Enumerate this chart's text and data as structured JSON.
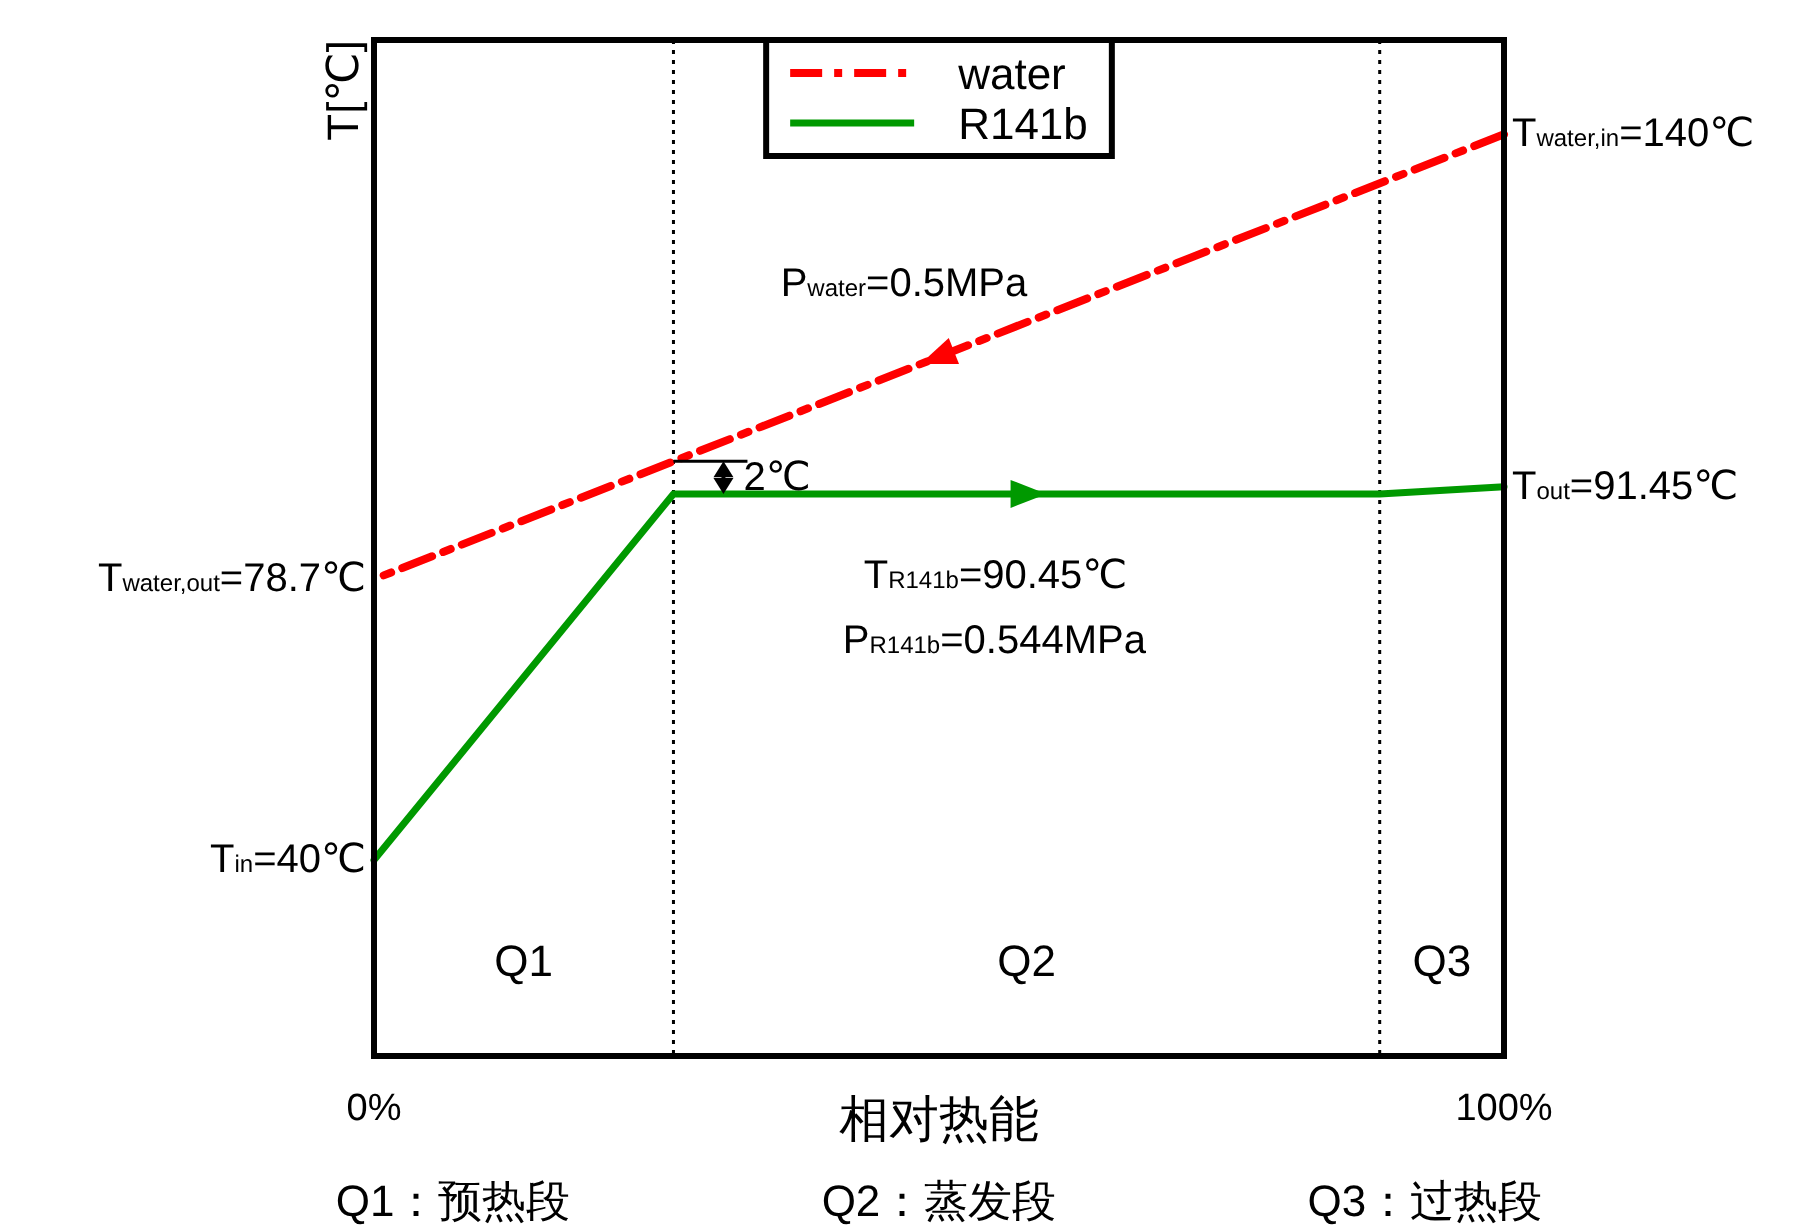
{
  "chart_data": {
    "type": "line",
    "xlabel": "相对热能",
    "ylabel": "T[℃]",
    "xlim": [
      0,
      100
    ],
    "xticks": [
      {
        "value": 0,
        "label": "0%"
      },
      {
        "value": 100,
        "label": "100%"
      }
    ],
    "tick_labels": "x",
    "legend": "top",
    "series": [
      {
        "name": "water",
        "color": "#ff0000",
        "line_style": "dashdot",
        "x": [
          100,
          0
        ],
        "values": [
          140,
          78.7
        ],
        "value_labels": [
          "T$_{water,in}$=140℃",
          "T$_{water,out}$=78.7℃"
        ]
      },
      {
        "name": "R141b",
        "color": "#009900",
        "line_style": "solid",
        "x": [
          0,
          26.5,
          89,
          100
        ],
        "values": [
          40,
          90.45,
          90.45,
          91.45
        ],
        "value_labels": [
          "T$_{in}$=40℃",
          null,
          null,
          "T$_{out}$=91.45℃"
        ]
      }
    ],
    "ref_lines": [
      {
        "axis": "x",
        "value": 26.5,
        "color": "#000000",
        "line_style": "dotted"
      },
      {
        "axis": "x",
        "value": 89,
        "color": "#000000",
        "line_style": "dotted"
      }
    ],
    "annotations": [
      "P$_{water}$=0.5MPa",
      "2℃",
      "P$_{R141b}$=0.544MPa",
      "Q1",
      "Q2",
      "Q3",
      "Q1：预热段",
      "Q2：蒸发段",
      "Q3：过热段",
      {
        "text": "T$_{R141b}$=90.45℃",
        "x": 55,
        "y": 90.45
      }
    ]
  }
}
